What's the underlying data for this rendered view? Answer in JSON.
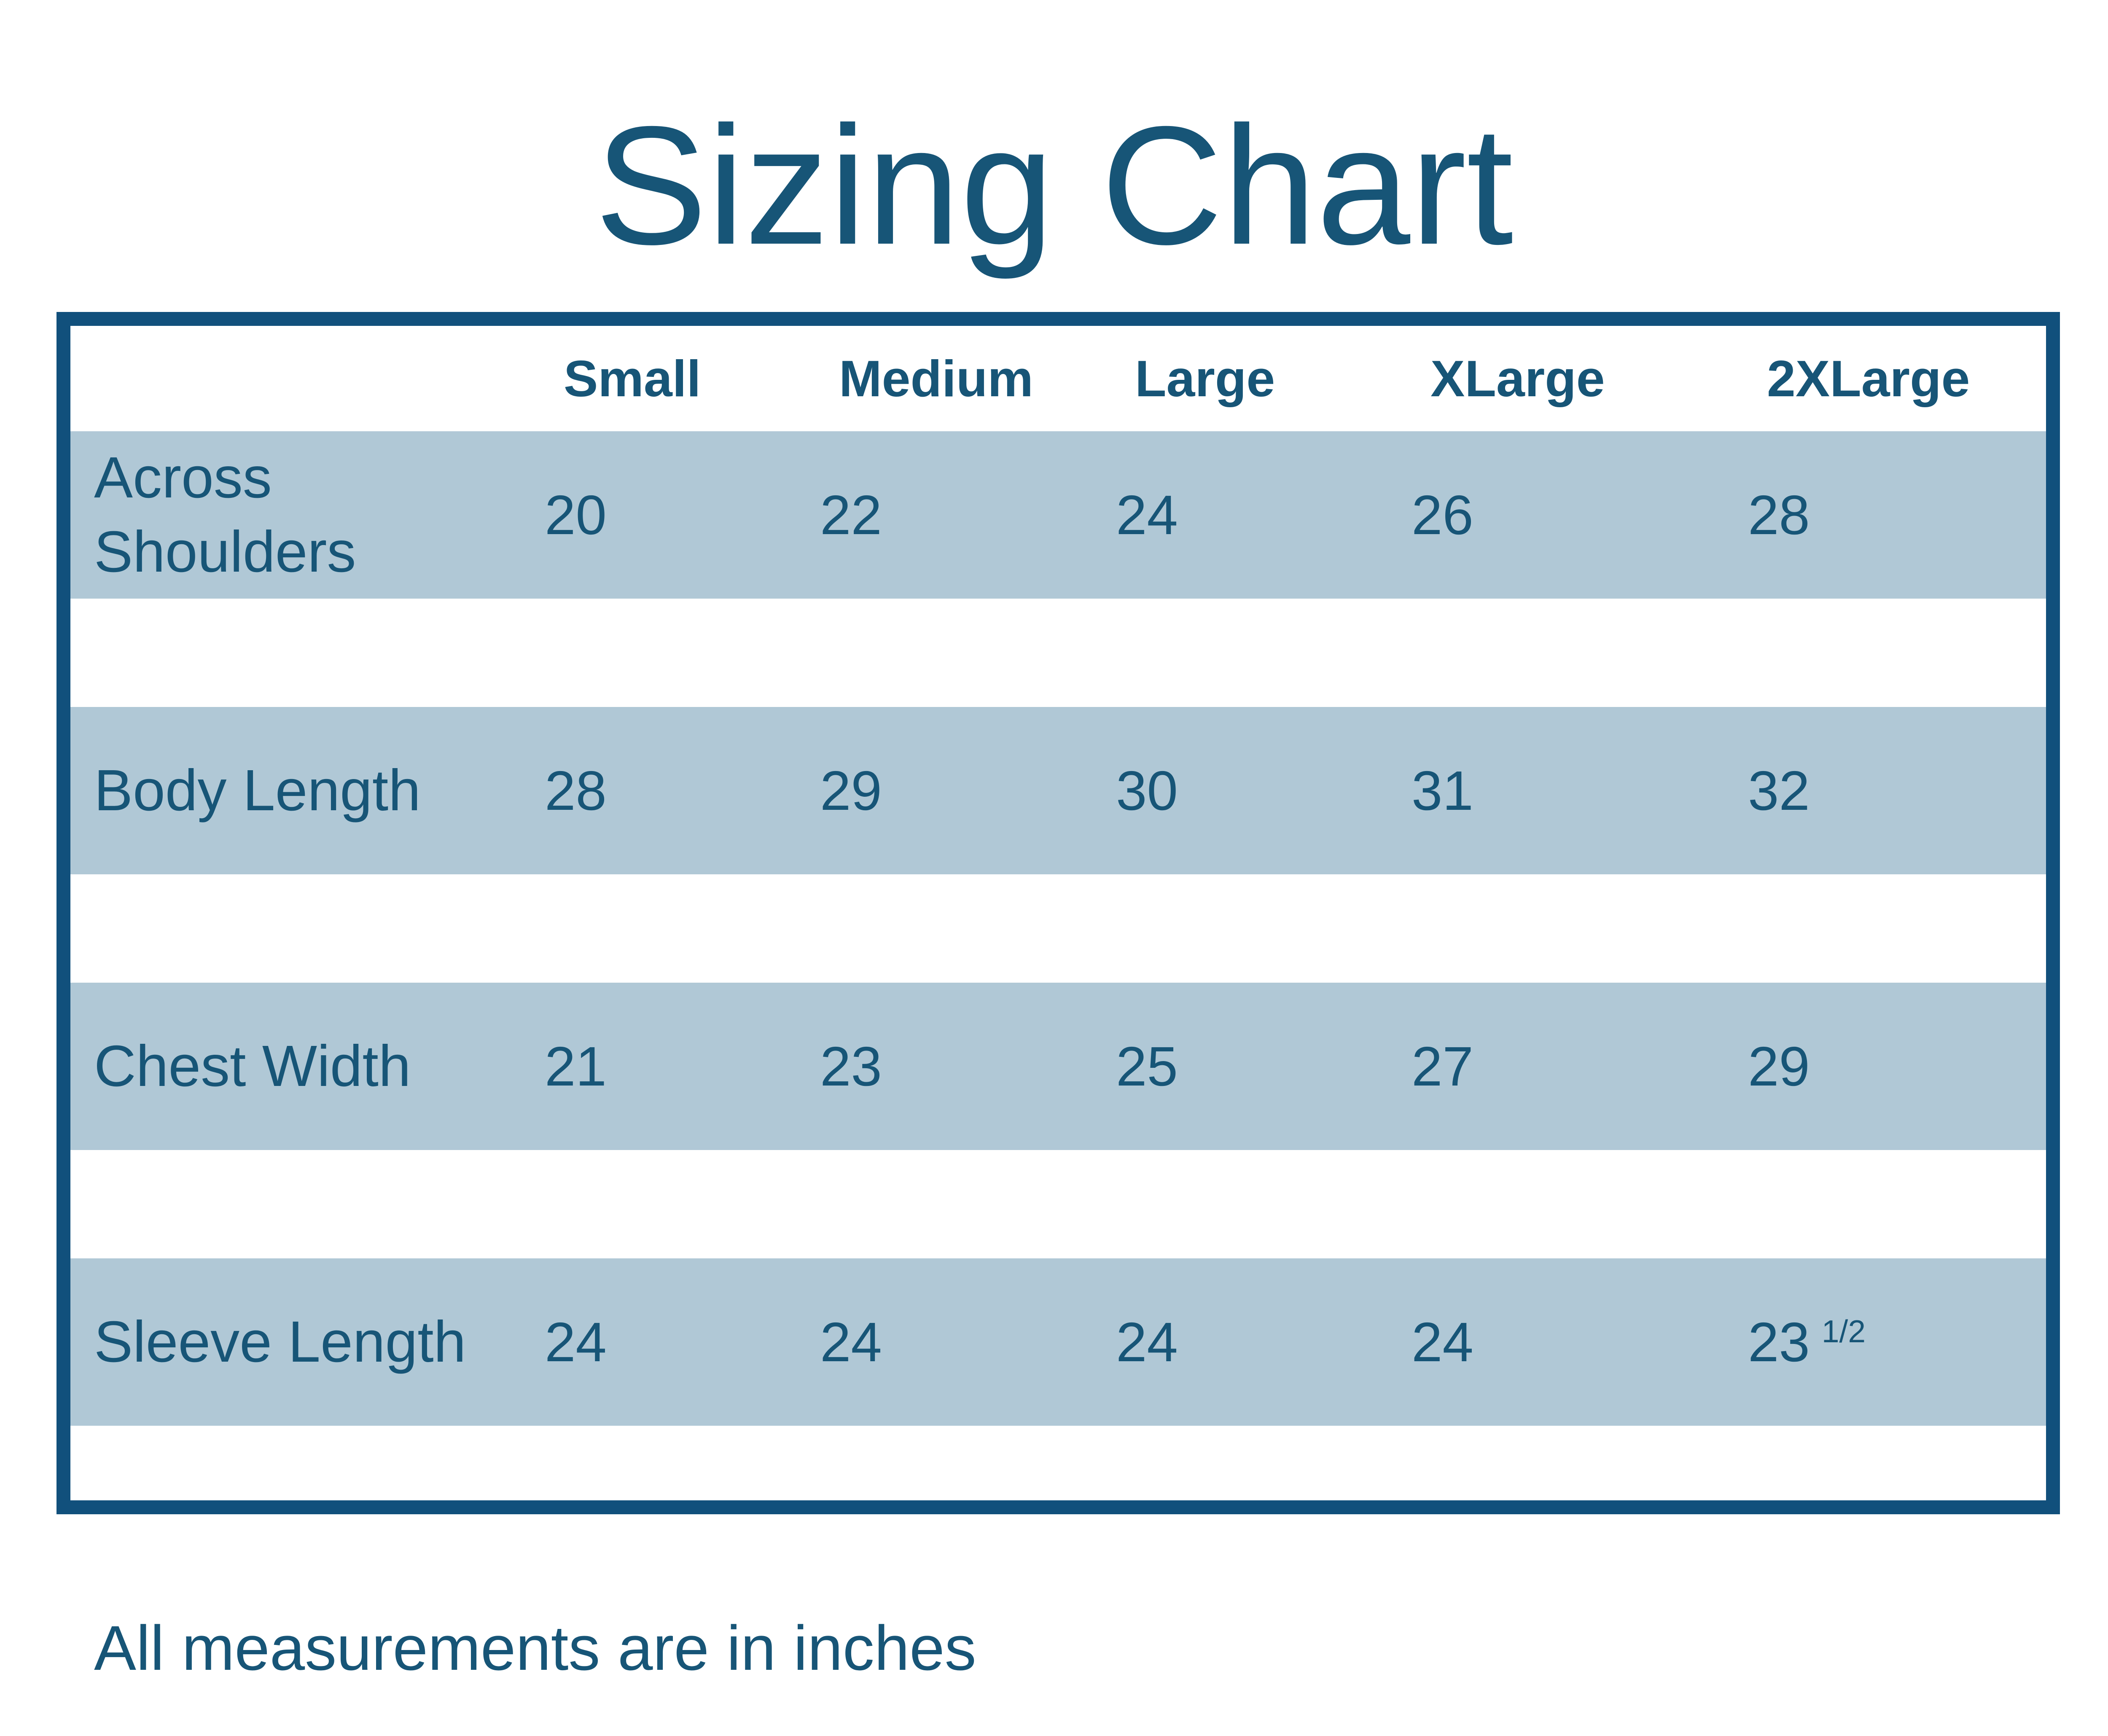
{
  "chart_data": {
    "type": "table",
    "title": "Sizing Chart",
    "columns": [
      "",
      "Small",
      "Medium",
      "Large",
      "XLarge",
      "2XLarge"
    ],
    "rows": [
      {
        "label": "Across Shoulders",
        "values": [
          "20",
          "22",
          "24",
          "26",
          "28"
        ]
      },
      {
        "label": "Body Length",
        "values": [
          "28",
          "29",
          "30",
          "31",
          "32"
        ]
      },
      {
        "label": "Chest Width",
        "values": [
          "21",
          "23",
          "25",
          "27",
          "29"
        ]
      },
      {
        "label": "Sleeve Length",
        "values": [
          "24",
          "24",
          "24",
          "24",
          "23"
        ],
        "sup": "1/2"
      }
    ],
    "note": "All measurements are in inches",
    "layout": {
      "grid": "off",
      "legend": "none",
      "row_style": "alternating solid bands with white gaps"
    }
  },
  "colors": {
    "accent": "#175577",
    "border": "#11507C",
    "row_bg": "#B0C8D6",
    "page_bg": "#FFFFFF"
  }
}
